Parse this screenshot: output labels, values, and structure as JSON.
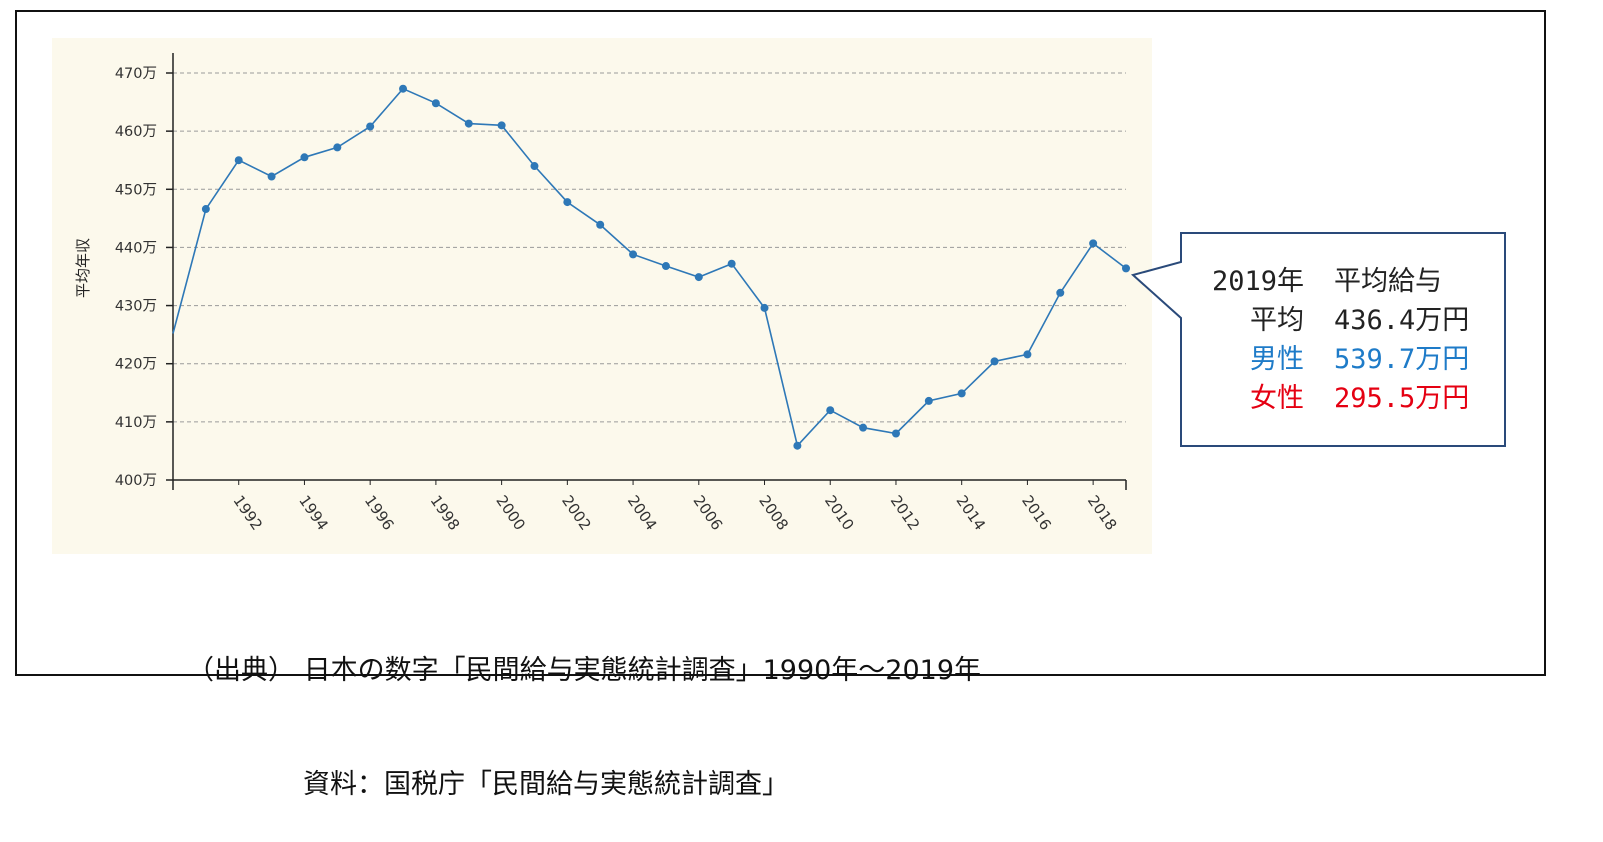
{
  "chart_data": {
    "type": "line",
    "title": "",
    "xlabel": "",
    "ylabel": "平均年収",
    "ylim": [
      400,
      470
    ],
    "yticks": [
      "400万",
      "410万",
      "420万",
      "430万",
      "440万",
      "450万",
      "460万",
      "470万"
    ],
    "ytick_values": [
      400,
      410,
      420,
      430,
      440,
      450,
      460,
      470
    ],
    "xticks": [
      1992,
      1994,
      1996,
      1998,
      2000,
      2002,
      2004,
      2006,
      2008,
      2010,
      2012,
      2014,
      2016,
      2018
    ],
    "xlim": [
      1990,
      2019
    ],
    "grid": "dashed horizontal",
    "line_color": "#2e78b7",
    "series": [
      {
        "x": [
          1990,
          1991,
          1992,
          1993,
          1994,
          1995,
          1996,
          1997,
          1998,
          1999,
          2000,
          2001,
          2002,
          2003,
          2004,
          2005,
          2006,
          2007,
          2008,
          2009,
          2010,
          2011,
          2012,
          2013,
          2014,
          2015,
          2016,
          2017,
          2018,
          2019
        ],
        "values": [
          425.2,
          446.6,
          455.0,
          452.2,
          455.5,
          457.2,
          460.8,
          467.3,
          464.8,
          461.3,
          461.0,
          454.0,
          447.8,
          443.9,
          438.8,
          436.8,
          434.9,
          437.2,
          429.6,
          405.9,
          412.0,
          409.0,
          408.0,
          413.6,
          414.9,
          420.4,
          421.6,
          432.2,
          440.7,
          436.4
        ]
      }
    ]
  },
  "callout": {
    "header_key": "2019年",
    "header_value": "平均給与",
    "avg_key": "平均",
    "avg_value": "436.4万円",
    "male_key": "男性",
    "male_value": "539.7万円",
    "female_key": "女性",
    "female_value": "295.5万円",
    "colors": {
      "male": "#1e7bc8",
      "female": "#e50012",
      "border": "#2a4a7a"
    }
  },
  "source": {
    "line1": "（出典） 日本の数字「民間給与実態統計調査」1990年～2019年",
    "line2": "資料：国税庁「民間給与実態統計調査」"
  }
}
